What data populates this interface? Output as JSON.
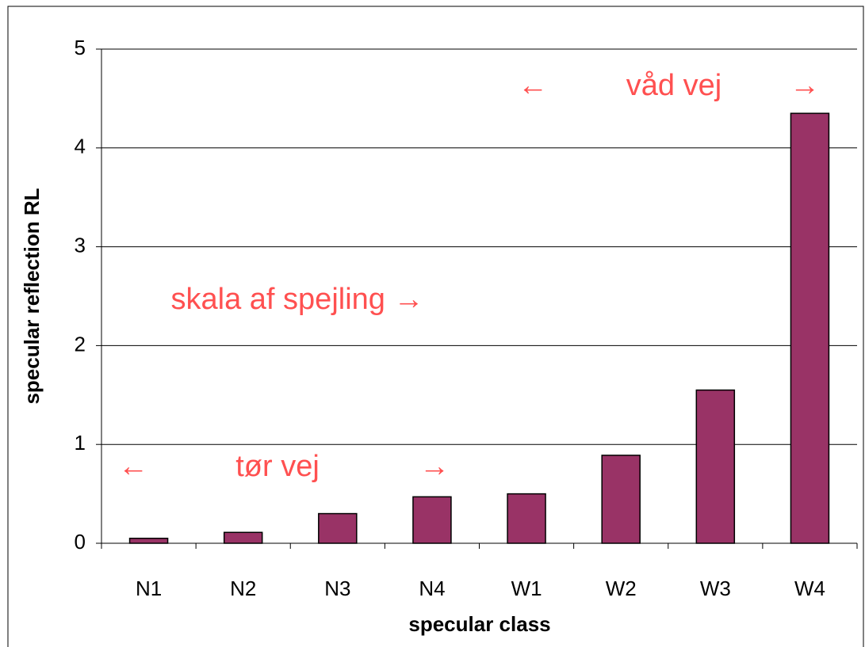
{
  "chart_data": {
    "type": "bar",
    "categories": [
      "N1",
      "N2",
      "N3",
      "N4",
      "W1",
      "W2",
      "W3",
      "W4"
    ],
    "values": [
      0.05,
      0.11,
      0.3,
      0.47,
      0.5,
      0.89,
      1.55,
      4.35
    ],
    "color": "#993366",
    "ylim": [
      0,
      5
    ],
    "yticks": [
      0,
      1,
      2,
      3,
      4,
      5
    ],
    "grid": true,
    "x_label": "specular class",
    "y_label": "specular reflection RL",
    "annotations": [
      "←",
      "våd vej",
      "→",
      "skala af spejling →",
      "←",
      "tør vej",
      "→"
    ],
    "annotation_color": "#ff5050"
  }
}
